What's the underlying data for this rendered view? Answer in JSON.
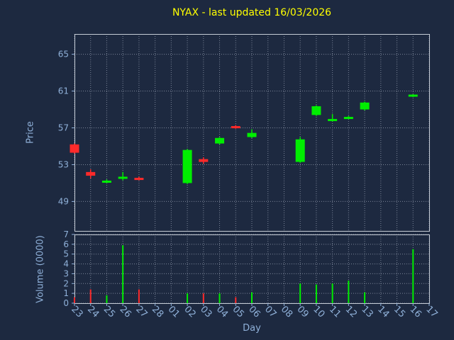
{
  "colors": {
    "background": "#1d2940",
    "title": "#ffff00",
    "axis_label": "#8fb0d8",
    "tick_label": "#8fb0d8",
    "grid": "#8a93a6",
    "frame": "#c5ccd6",
    "up": "#00ee00",
    "down": "#ff2a2a"
  },
  "chart_data": {
    "type": "candlestick",
    "title": "NYAX - last updated 16/03/2026",
    "xlabel": "Day",
    "grid": true,
    "legend": "none",
    "x_ticks": [
      "23",
      "24",
      "25",
      "26",
      "27",
      "28",
      "01",
      "02",
      "03",
      "04",
      "05",
      "06",
      "07",
      "08",
      "09",
      "10",
      "11",
      "12",
      "13",
      "14",
      "15",
      "16",
      "17"
    ],
    "panels": {
      "price": {
        "ylabel": "Price",
        "y_ticks": [
          49,
          53,
          57,
          61,
          65
        ],
        "ylim": [
          45.8,
          67.2
        ]
      },
      "volume": {
        "ylabel": "Volume (0000)",
        "y_ticks": [
          0,
          1,
          2,
          3,
          4,
          5,
          6,
          7
        ],
        "ylim": [
          0,
          7
        ]
      }
    },
    "candles": [
      {
        "day": "23",
        "open": 55.2,
        "high": 55.3,
        "low": 54.2,
        "close": 54.3,
        "volume": 0.6
      },
      {
        "day": "24",
        "open": 52.2,
        "high": 52.5,
        "low": 51.5,
        "close": 51.8,
        "volume": 1.4
      },
      {
        "day": "25",
        "open": 51.1,
        "high": 51.4,
        "low": 51.0,
        "close": 51.2,
        "volume": 0.8
      },
      {
        "day": "26",
        "open": 51.5,
        "high": 52.2,
        "low": 51.3,
        "close": 51.65,
        "volume": 5.9
      },
      {
        "day": "27",
        "open": 51.5,
        "high": 51.7,
        "low": 51.3,
        "close": 51.4,
        "volume": 1.4
      },
      {
        "day": "02",
        "open": 51.0,
        "high": 54.7,
        "low": 50.9,
        "close": 54.6,
        "volume": 1.0
      },
      {
        "day": "03",
        "open": 53.6,
        "high": 53.8,
        "low": 53.1,
        "close": 53.3,
        "volume": 1.0
      },
      {
        "day": "04",
        "open": 55.3,
        "high": 56.0,
        "low": 55.2,
        "close": 55.9,
        "volume": 1.0
      },
      {
        "day": "05",
        "open": 57.15,
        "high": 57.3,
        "low": 56.9,
        "close": 57.0,
        "volume": 0.6
      },
      {
        "day": "06",
        "open": 56.0,
        "high": 56.85,
        "low": 55.9,
        "close": 56.45,
        "volume": 1.1
      },
      {
        "day": "09",
        "open": 53.3,
        "high": 56.0,
        "low": 53.2,
        "close": 55.75,
        "volume": 2.0
      },
      {
        "day": "10",
        "open": 58.4,
        "high": 59.45,
        "low": 58.3,
        "close": 59.35,
        "volume": 1.9
      },
      {
        "day": "11",
        "open": 57.8,
        "high": 58.5,
        "low": 57.7,
        "close": 57.9,
        "volume": 2.0
      },
      {
        "day": "12",
        "open": 58.0,
        "high": 58.3,
        "low": 57.95,
        "close": 58.15,
        "volume": 2.3
      },
      {
        "day": "13",
        "open": 59.0,
        "high": 59.85,
        "low": 58.9,
        "close": 59.75,
        "volume": 1.1
      },
      {
        "day": "16",
        "open": 60.45,
        "high": 60.65,
        "low": 60.35,
        "close": 60.55,
        "volume": 5.5
      }
    ]
  }
}
